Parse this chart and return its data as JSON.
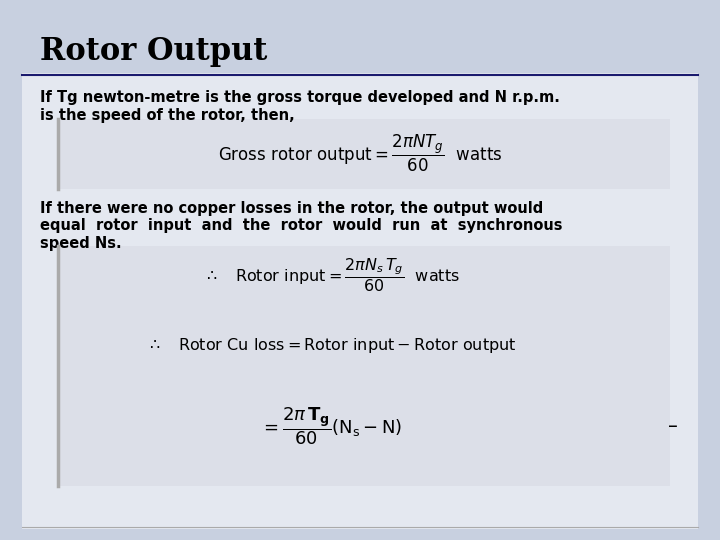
{
  "title": "Rotor Output",
  "bg_color": "#c8d0e0",
  "title_color": "#000000",
  "text_color": "#000000",
  "para1_line1": "If Tg newton-metre is the gross torque developed and N r.p.m.",
  "para1_line2": "is the speed of the rotor, then,",
  "formula1": "$\\mathrm{Gross\\ rotor\\ output} = \\dfrac{2\\pi N T_g}{60}\\ \\ \\mathrm{watts}$",
  "para2_line1": "If there were no copper losses in the rotor, the output would",
  "para2_line2": "equal  rotor  input  and  the  rotor  would  run  at  synchronous",
  "para2_line3": "speed Ns.",
  "formula2": "$\\therefore \\quad \\mathrm{Rotor\\ input} = \\dfrac{2\\pi N_s\\, T_g}{60}\\ \\ \\mathrm{watts}$",
  "formula3": "$\\therefore \\quad \\mathrm{Rotor\\ Cu\\ loss} = \\mathrm{Rotor\\ input} - \\mathrm{Rotor\\ output}$",
  "formula4": "$= \\dfrac{2\\pi\\, \\mathbf{T_g}}{60}(\\mathrm{N_s} - \\mathrm{N})$",
  "dash": "–"
}
